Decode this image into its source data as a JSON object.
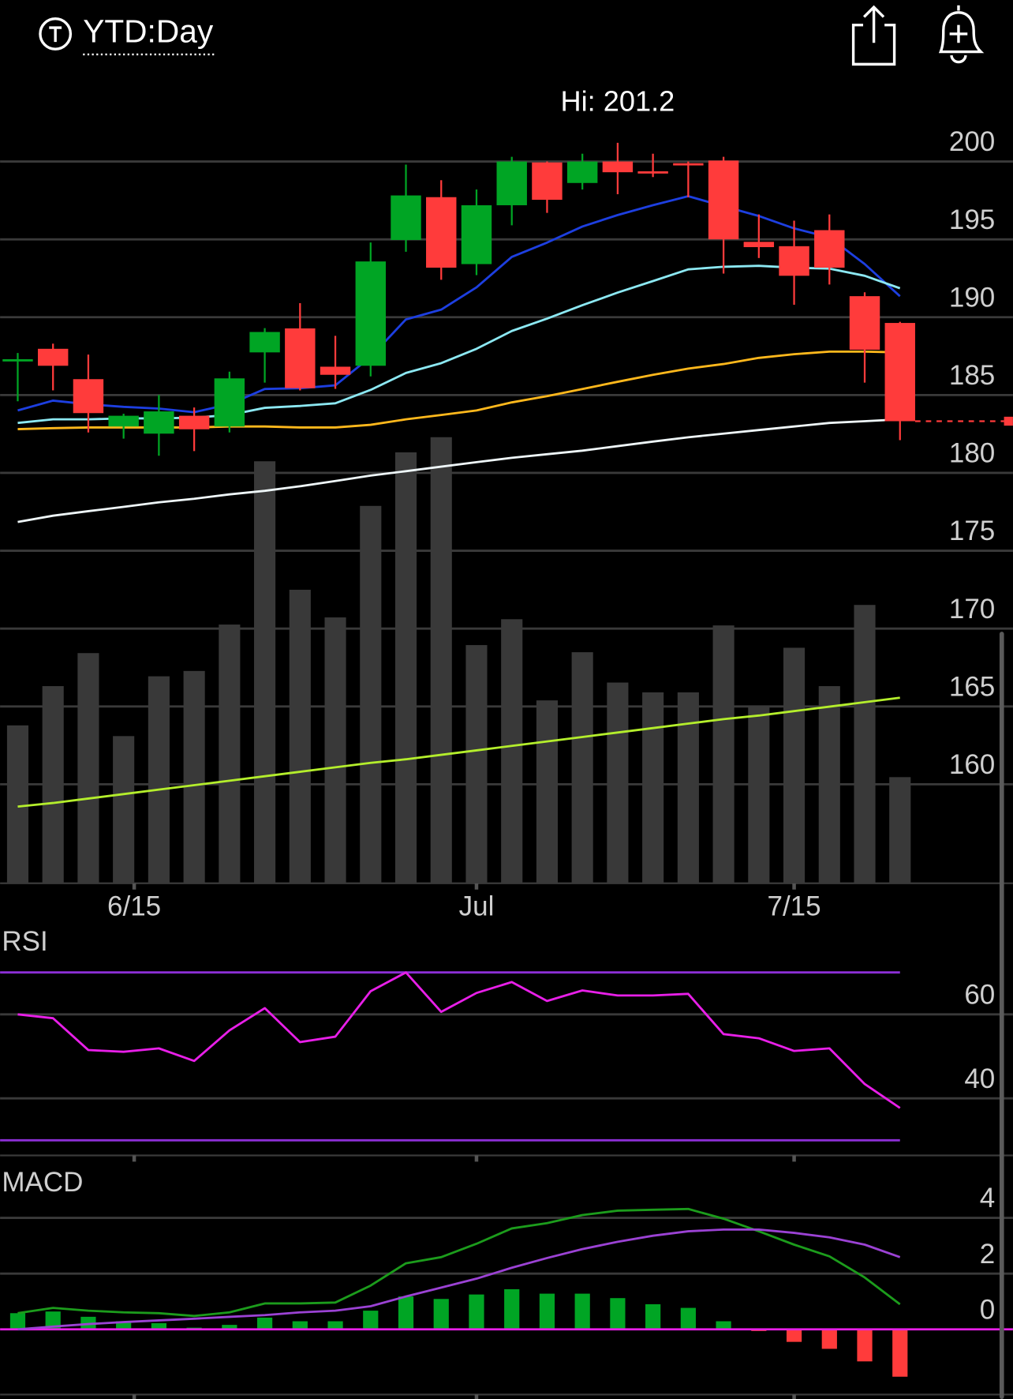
{
  "header": {
    "title": "YTD:Day"
  },
  "chart_data": [
    {
      "type": "candlestick",
      "hi_label": "Hi: 201.2",
      "xlim": [
        -0.5,
        28.2
      ],
      "xticks": [
        {
          "value": 3.3,
          "label": "6/15"
        },
        {
          "value": 13,
          "label": "Jul"
        },
        {
          "value": 22,
          "label": "7/15"
        }
      ],
      "ylim": [
        153.64,
        202.35
      ],
      "yticks": [
        160,
        165,
        170,
        175,
        180,
        185,
        190,
        195,
        200
      ],
      "grid": true,
      "up_color": "#00a524",
      "down_color": "#ff3b3b",
      "open": [
        187.2,
        187.97,
        186.02,
        182.98,
        182.52,
        183.67,
        182.98,
        187.74,
        189.28,
        186.82,
        186.88,
        194.96,
        197.71,
        193.41,
        197.19,
        199.94,
        198.62,
        200.0,
        199.37,
        199.89,
        200.06,
        194.84,
        194.56,
        195.59,
        191.35,
        189.63
      ],
      "high": [
        187.7,
        188.3,
        187.6,
        183.8,
        185.0,
        184.2,
        186.5,
        189.3,
        190.9,
        188.8,
        194.8,
        199.8,
        198.8,
        198.2,
        200.3,
        200.0,
        200.5,
        201.2,
        200.5,
        200.0,
        200.3,
        196.6,
        196.2,
        196.6,
        191.6,
        189.7
      ],
      "low": [
        184.6,
        185.3,
        182.6,
        182.2,
        181.1,
        181.4,
        182.6,
        185.8,
        185.3,
        185.4,
        186.2,
        194.2,
        192.4,
        192.7,
        195.9,
        196.7,
        198.2,
        197.9,
        199.0,
        197.7,
        192.8,
        193.8,
        190.8,
        192.1,
        185.8,
        182.1
      ],
      "close": [
        187.3,
        186.88,
        183.84,
        183.67,
        183.95,
        182.8,
        186.07,
        189.05,
        185.44,
        186.3,
        193.58,
        197.82,
        193.18,
        197.19,
        200.0,
        197.54,
        200.0,
        199.31,
        199.25,
        199.77,
        195.0,
        194.5,
        192.66,
        193.18,
        187.91,
        183.32
      ],
      "overlays": [
        {
          "color": "#1d3fe0",
          "values": [
            184.01,
            184.64,
            184.41,
            184.24,
            184.13,
            183.9,
            184.41,
            185.39,
            185.44,
            185.62,
            187.45,
            189.86,
            190.49,
            191.92,
            193.87,
            194.79,
            195.82,
            196.56,
            197.19,
            197.77,
            197.13,
            196.5,
            195.7,
            195.13,
            193.41,
            191.35
          ]
        },
        {
          "color": "#8ce8f2",
          "values": [
            183.21,
            183.44,
            183.44,
            183.5,
            183.5,
            183.55,
            183.72,
            184.18,
            184.3,
            184.47,
            185.33,
            186.42,
            187.05,
            187.97,
            189.11,
            189.91,
            190.77,
            191.58,
            192.32,
            193.07,
            193.24,
            193.3,
            193.18,
            193.12,
            192.66,
            191.86
          ]
        },
        {
          "color": "#ffb81c",
          "values": [
            182.81,
            182.87,
            182.92,
            182.92,
            182.92,
            182.92,
            182.98,
            182.98,
            182.92,
            182.92,
            183.09,
            183.44,
            183.72,
            184.01,
            184.53,
            184.93,
            185.39,
            185.85,
            186.3,
            186.7,
            186.99,
            187.39,
            187.62,
            187.79,
            187.79,
            187.74
          ]
        },
        {
          "color": "#eef6f8",
          "values": [
            176.85,
            177.25,
            177.54,
            177.82,
            178.11,
            178.34,
            178.62,
            178.85,
            179.14,
            179.48,
            179.83,
            180.11,
            180.4,
            180.69,
            180.97,
            181.2,
            181.43,
            181.72,
            182.01,
            182.29,
            182.52,
            182.75,
            182.98,
            183.21,
            183.32,
            183.44
          ]
        }
      ],
      "volume": {
        "color": "#393939",
        "ylim": [
          0,
          850
        ],
        "values": [
          177,
          221,
          258,
          165,
          232,
          238,
          290,
          473,
          329,
          298,
          423,
          483,
          500,
          267,
          296,
          205,
          259,
          225,
          214,
          214,
          289,
          199,
          264,
          221,
          312,
          119
        ]
      },
      "volume_average": {
        "color": "#b4ee2c",
        "values": [
          86,
          90,
          95,
          100,
          105,
          110,
          115,
          120,
          125,
          130,
          135,
          139,
          144,
          149,
          154,
          159,
          164,
          169,
          174,
          179,
          184,
          188,
          193,
          198,
          203,
          208
        ]
      }
    },
    {
      "type": "line",
      "title": "RSI",
      "ylim": [
        26.4,
        80.6
      ],
      "yticks": [
        40,
        60
      ],
      "grid": true,
      "levels": [
        30,
        70
      ],
      "level_color": "#8c2fd6",
      "series": [
        {
          "color": "#e81fe8",
          "values": [
            60.0,
            59.1,
            51.5,
            51.1,
            51.9,
            48.9,
            56.2,
            61.5,
            53.4,
            54.7,
            65.5,
            70.0,
            60.6,
            65.1,
            67.7,
            63.2,
            65.7,
            64.5,
            64.5,
            64.9,
            55.3,
            54.3,
            51.3,
            51.9,
            43.4,
            37.7
          ]
        }
      ]
    },
    {
      "type": "macd",
      "title": "MACD",
      "ylim": [
        -2.5,
        5.76
      ],
      "yticks": [
        0,
        2,
        4
      ],
      "grid": true,
      "zero_color": "#e81fe8",
      "up_color": "#00a524",
      "down_color": "#ff3b3b",
      "series": [
        {
          "color": "#1c9c1c",
          "values": [
            0.58,
            0.77,
            0.67,
            0.61,
            0.58,
            0.48,
            0.61,
            0.93,
            0.93,
            0.96,
            1.57,
            2.37,
            2.59,
            3.07,
            3.62,
            3.81,
            4.1,
            4.26,
            4.29,
            4.32,
            3.97,
            3.52,
            3.04,
            2.62,
            1.86,
            0.9
          ]
        },
        {
          "color": "#9b42d4",
          "values": [
            0.0,
            0.1,
            0.19,
            0.26,
            0.32,
            0.38,
            0.45,
            0.51,
            0.61,
            0.67,
            0.83,
            1.18,
            1.5,
            1.82,
            2.21,
            2.56,
            2.88,
            3.14,
            3.36,
            3.52,
            3.58,
            3.58,
            3.46,
            3.3,
            3.04,
            2.59
          ]
        }
      ],
      "histogram": [
        0.58,
        0.64,
        0.45,
        0.29,
        0.22,
        0.06,
        0.16,
        0.42,
        0.29,
        0.29,
        0.67,
        1.18,
        1.09,
        1.25,
        1.44,
        1.28,
        1.28,
        1.12,
        0.9,
        0.77,
        0.29,
        -0.06,
        -0.45,
        -0.7,
        -1.15,
        -1.7
      ]
    }
  ]
}
